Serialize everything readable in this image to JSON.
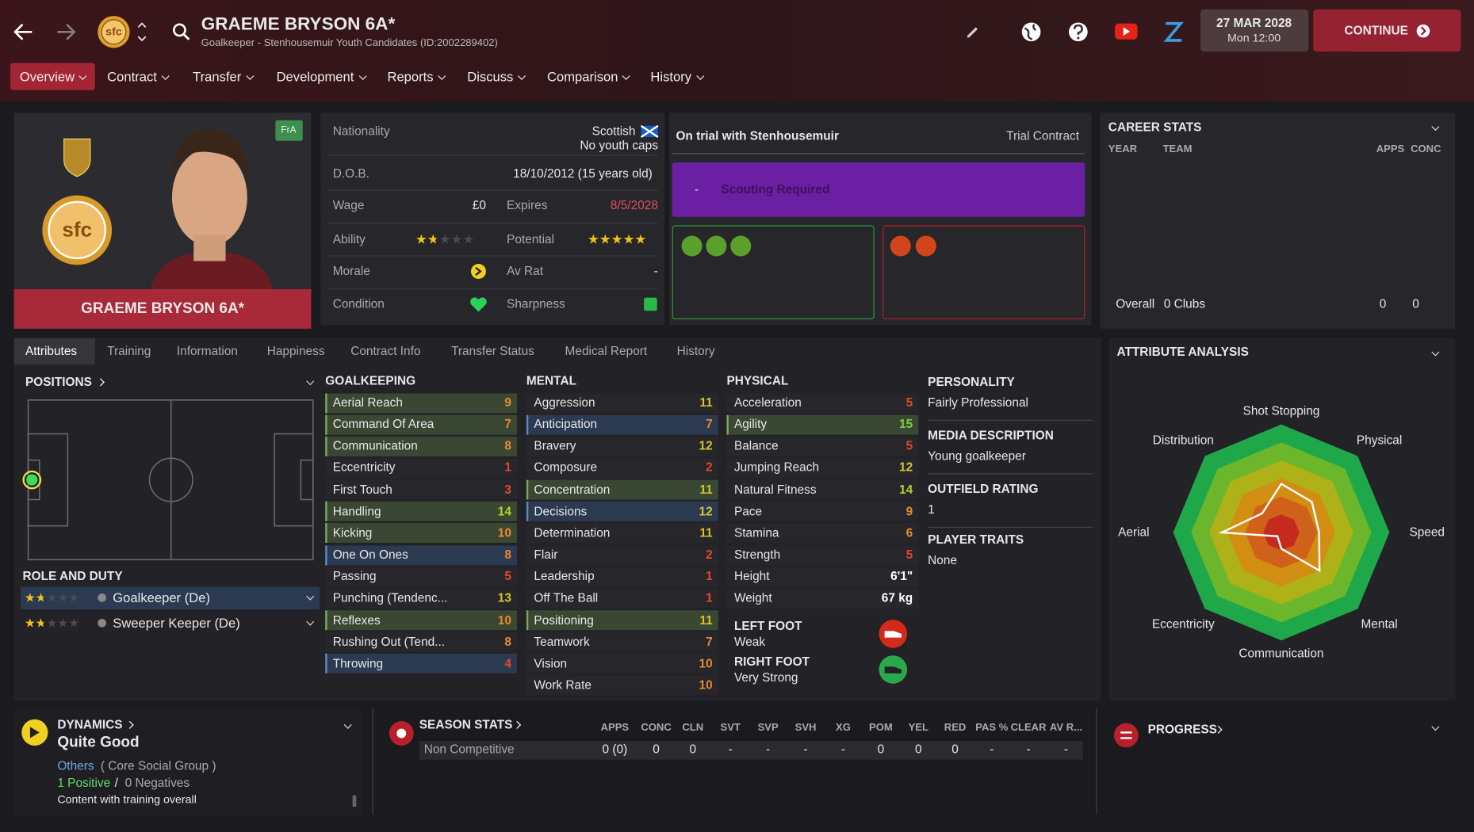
{
  "header": {
    "title": "GRAEME BRYSON 6A*",
    "subtitle": "Goalkeeper - Stenhousemuir Youth Candidates (ID:2002289402)",
    "club_badge": "sfc",
    "date": "27 MAR 2028",
    "time": "Mon 12:00",
    "continue": "CONTINUE"
  },
  "nav": [
    "Overview",
    "Contract",
    "Transfer",
    "Development",
    "Reports",
    "Discuss",
    "Comparison",
    "History"
  ],
  "profile": {
    "name": "GRAEME BRYSON 6A*",
    "tag": "FrA"
  },
  "info": {
    "nationality_label": "Nationality",
    "nationality": "Scottish",
    "caps": "No youth caps",
    "dob_label": "D.O.B.",
    "dob": "18/10/2012 (15 years old)",
    "wage_label": "Wage",
    "wage": "£0",
    "expires_label": "Expires",
    "expires": "8/5/2028",
    "ability_label": "Ability",
    "ability": 1.5,
    "potential_label": "Potential",
    "potential": 4.5,
    "morale_label": "Morale",
    "avrat_label": "Av Rat",
    "avrat": "-",
    "condition_label": "Condition",
    "sharpness_label": "Sharpness"
  },
  "contract": {
    "title": "On trial with Stenhousemuir",
    "type": "Trial Contract",
    "dash": "-",
    "scouting": "Scouting Required"
  },
  "career": {
    "title": "CAREER STATS",
    "headers": [
      "YEAR",
      "TEAM",
      "APPS",
      "CONC"
    ],
    "overall": "Overall",
    "clubs": "0 Clubs",
    "apps": 0,
    "conc": 0
  },
  "tabs": [
    "Attributes",
    "Training",
    "Information",
    "Happiness",
    "Contract Info",
    "Transfer Status",
    "Medical Report",
    "History"
  ],
  "positions": {
    "title": "POSITIONS",
    "role_title": "ROLE AND DUTY",
    "roles": [
      {
        "name": "Goalkeeper (De)",
        "stars": 1.5
      },
      {
        "name": "Sweeper Keeper (De)",
        "stars": 1.5
      }
    ]
  },
  "goalkeeping": {
    "title": "GOALKEEPING",
    "items": [
      {
        "name": "Aerial Reach",
        "value": 9,
        "highlight": "green"
      },
      {
        "name": "Command Of Area",
        "value": 7,
        "highlight": "green"
      },
      {
        "name": "Communication",
        "value": 8,
        "highlight": "green"
      },
      {
        "name": "Eccentricity",
        "value": 1
      },
      {
        "name": "First Touch",
        "value": 3
      },
      {
        "name": "Handling",
        "value": 14,
        "highlight": "green"
      },
      {
        "name": "Kicking",
        "value": 10,
        "highlight": "green"
      },
      {
        "name": "One On Ones",
        "value": 8,
        "highlight": "blue"
      },
      {
        "name": "Passing",
        "value": 5
      },
      {
        "name": "Punching (Tendenc...",
        "value": 13
      },
      {
        "name": "Reflexes",
        "value": 10,
        "highlight": "green"
      },
      {
        "name": "Rushing Out (Tend...",
        "value": 8
      },
      {
        "name": "Throwing",
        "value": 4,
        "highlight": "blue"
      }
    ]
  },
  "mental": {
    "title": "MENTAL",
    "items": [
      {
        "name": "Aggression",
        "value": 11
      },
      {
        "name": "Anticipation",
        "value": 7,
        "highlight": "blue"
      },
      {
        "name": "Bravery",
        "value": 12
      },
      {
        "name": "Composure",
        "value": 2
      },
      {
        "name": "Concentration",
        "value": 11,
        "highlight": "green"
      },
      {
        "name": "Decisions",
        "value": 12,
        "highlight": "blue"
      },
      {
        "name": "Determination",
        "value": 11
      },
      {
        "name": "Flair",
        "value": 2
      },
      {
        "name": "Leadership",
        "value": 1
      },
      {
        "name": "Off The Ball",
        "value": 1
      },
      {
        "name": "Positioning",
        "value": 11,
        "highlight": "green"
      },
      {
        "name": "Teamwork",
        "value": 7
      },
      {
        "name": "Vision",
        "value": 10
      },
      {
        "name": "Work Rate",
        "value": 10
      }
    ]
  },
  "physical": {
    "title": "PHYSICAL",
    "items": [
      {
        "name": "Acceleration",
        "value": 5
      },
      {
        "name": "Agility",
        "value": 15,
        "highlight": "green"
      },
      {
        "name": "Balance",
        "value": 5
      },
      {
        "name": "Jumping Reach",
        "value": 12
      },
      {
        "name": "Natural Fitness",
        "value": 14
      },
      {
        "name": "Pace",
        "value": 9
      },
      {
        "name": "Stamina",
        "value": 6
      },
      {
        "name": "Strength",
        "value": 5
      },
      {
        "name": "Height",
        "value": "6'1\""
      },
      {
        "name": "Weight",
        "value": "67 kg"
      }
    ],
    "left_foot_label": "LEFT FOOT",
    "left_foot": "Weak",
    "right_foot_label": "RIGHT FOOT",
    "right_foot": "Very Strong"
  },
  "details": [
    {
      "label": "PERSONALITY",
      "value": "Fairly Professional"
    },
    {
      "label": "MEDIA DESCRIPTION",
      "value": "Young goalkeeper"
    },
    {
      "label": "OUTFIELD RATING",
      "value": "1"
    },
    {
      "label": "PLAYER TRAITS",
      "value": "None"
    }
  ],
  "attribute_analysis": {
    "title": "ATTRIBUTE ANALYSIS",
    "labels": [
      "Shot Stopping",
      "Physical",
      "Speed",
      "Mental",
      "Communication",
      "Eccentricity",
      "Aerial",
      "Distribution"
    ],
    "values": [
      9,
      8,
      7,
      10,
      3,
      1,
      11,
      5
    ],
    "rlim": [
      0,
      20
    ]
  },
  "dynamics": {
    "title": "DYNAMICS",
    "rating": "Quite Good",
    "group": "Others",
    "group_note": "( Core Social Group )",
    "positive": "1 Positive",
    "sep": "/",
    "negative": "0 Negatives",
    "note": "Content with training overall"
  },
  "season_stats": {
    "title": "SEASON STATS",
    "headers": [
      "APPS",
      "CONC",
      "CLN",
      "SVT",
      "SVP",
      "SVH",
      "XG",
      "POM",
      "YEL",
      "RED",
      "PAS %",
      "CLEAR",
      "AV R..."
    ],
    "row": {
      "name": "Non Competitive",
      "values": [
        "0 (0)",
        "0",
        "0",
        "-",
        "-",
        "-",
        "-",
        "0",
        "0",
        "0",
        "-",
        "-",
        "-"
      ]
    }
  },
  "progress": {
    "title": "PROGRESS"
  }
}
